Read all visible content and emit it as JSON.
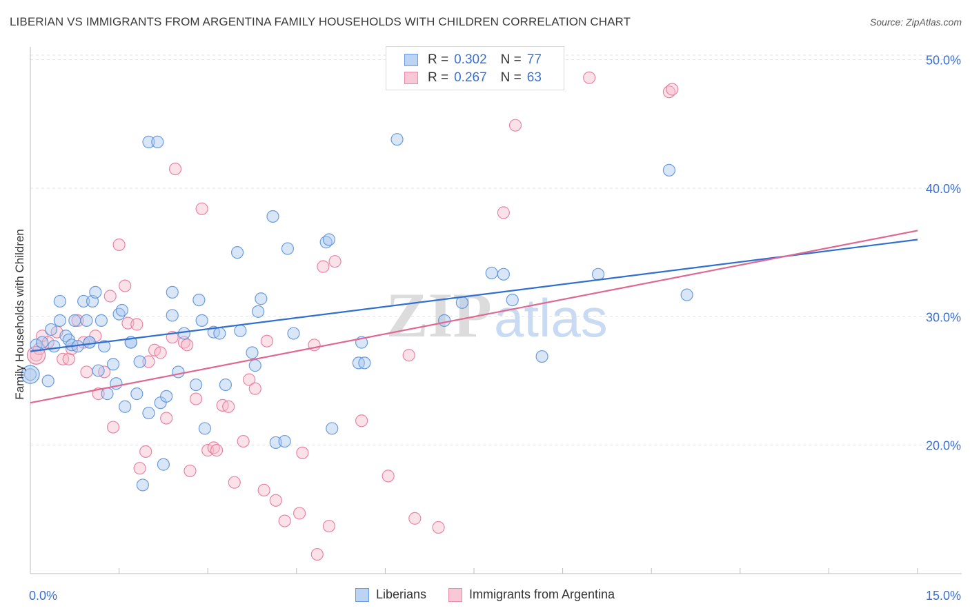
{
  "title": "LIBERIAN VS IMMIGRANTS FROM ARGENTINA FAMILY HOUSEHOLDS WITH CHILDREN CORRELATION CHART",
  "source": "Source: ZipAtlas.com",
  "watermark": {
    "zip": "ZIP",
    "atlas": "atlas"
  },
  "colors": {
    "blue_fill": "#a9c7f0",
    "blue_stroke": "#5b92da",
    "blue_line": "#2f6fd0",
    "pink_fill": "#f6bccd",
    "pink_stroke": "#e6799b",
    "pink_line": "#e0678f",
    "axis_label": "#3a6fd0",
    "grid": "#e2e2e2"
  },
  "legend": {
    "r_label": "R =",
    "n_label": "N =",
    "rows": [
      {
        "r": "0.302",
        "n": "77",
        "series": "blue"
      },
      {
        "r": "0.267",
        "n": "63",
        "series": "pink"
      }
    ]
  },
  "bottom_legend": {
    "liberians": "Liberians",
    "argentina": "Immigrants from Argentina"
  },
  "chart_data": {
    "type": "scatter",
    "title": "LIBERIAN VS IMMIGRANTS FROM ARGENTINA FAMILY HOUSEHOLDS WITH CHILDREN CORRELATION CHART",
    "xlabel": "",
    "ylabel": "Family Households with Children",
    "xlim": [
      0,
      15
    ],
    "ylim": [
      10,
      51
    ],
    "x_tick_labels": [
      "0.0%",
      "15.0%"
    ],
    "y_ticks": [
      20,
      30,
      40,
      50
    ],
    "y_tick_labels": [
      "20.0%",
      "30.0%",
      "40.0%",
      "50.0%"
    ],
    "grid": true,
    "legend_position": "top-center",
    "series": [
      {
        "name": "Liberians",
        "color": "blue",
        "trend": [
          [
            0,
            27.3
          ],
          [
            15,
            36.0
          ]
        ],
        "points": [
          [
            0.0,
            25.5
          ],
          [
            0.1,
            27.8
          ],
          [
            0.2,
            28.0
          ],
          [
            0.3,
            25.0
          ],
          [
            0.35,
            29.0
          ],
          [
            0.4,
            27.7
          ],
          [
            0.5,
            29.7
          ],
          [
            0.5,
            31.2
          ],
          [
            0.6,
            28.5
          ],
          [
            0.65,
            28.2
          ],
          [
            0.7,
            27.8
          ],
          [
            0.75,
            29.7
          ],
          [
            0.8,
            27.7
          ],
          [
            0.9,
            31.2
          ],
          [
            0.95,
            29.7
          ],
          [
            1.0,
            28.0
          ],
          [
            1.05,
            31.2
          ],
          [
            1.1,
            31.9
          ],
          [
            1.15,
            25.8
          ],
          [
            1.2,
            29.7
          ],
          [
            1.25,
            27.7
          ],
          [
            1.3,
            24.0
          ],
          [
            1.4,
            26.3
          ],
          [
            1.45,
            24.8
          ],
          [
            1.5,
            30.2
          ],
          [
            1.55,
            30.5
          ],
          [
            1.6,
            23.0
          ],
          [
            1.7,
            28.0
          ],
          [
            1.8,
            24.0
          ],
          [
            1.85,
            26.5
          ],
          [
            1.9,
            16.9
          ],
          [
            2.0,
            22.5
          ],
          [
            2.0,
            43.6
          ],
          [
            2.15,
            43.6
          ],
          [
            2.2,
            23.3
          ],
          [
            2.25,
            18.5
          ],
          [
            2.3,
            23.8
          ],
          [
            2.4,
            30.1
          ],
          [
            2.4,
            31.9
          ],
          [
            2.5,
            25.7
          ],
          [
            2.6,
            28.7
          ],
          [
            2.8,
            24.7
          ],
          [
            2.85,
            31.3
          ],
          [
            2.9,
            29.7
          ],
          [
            2.95,
            21.3
          ],
          [
            3.1,
            28.8
          ],
          [
            3.2,
            28.7
          ],
          [
            3.3,
            24.7
          ],
          [
            3.5,
            35.0
          ],
          [
            3.55,
            28.9
          ],
          [
            3.75,
            27.2
          ],
          [
            3.8,
            26.2
          ],
          [
            3.85,
            30.4
          ],
          [
            3.9,
            31.4
          ],
          [
            4.1,
            37.8
          ],
          [
            4.15,
            20.2
          ],
          [
            4.3,
            20.3
          ],
          [
            4.35,
            35.3
          ],
          [
            4.45,
            28.7
          ],
          [
            5.0,
            35.8
          ],
          [
            5.05,
            36.0
          ],
          [
            5.1,
            21.3
          ],
          [
            5.55,
            26.4
          ],
          [
            5.6,
            28.0
          ],
          [
            5.65,
            26.4
          ],
          [
            6.2,
            43.8
          ],
          [
            7.0,
            29.7
          ],
          [
            7.3,
            31.1
          ],
          [
            7.8,
            33.4
          ],
          [
            8.0,
            33.3
          ],
          [
            8.15,
            31.3
          ],
          [
            8.65,
            26.9
          ],
          [
            9.6,
            33.3
          ],
          [
            10.8,
            41.4
          ],
          [
            11.1,
            31.7
          ],
          [
            1.7,
            28.0
          ],
          [
            1.0,
            28.0
          ]
        ]
      },
      {
        "name": "Immigrants from Argentina",
        "color": "pink",
        "trend": [
          [
            0,
            23.3
          ],
          [
            15,
            36.7
          ]
        ],
        "points": [
          [
            0.1,
            27.0
          ],
          [
            0.15,
            27.5
          ],
          [
            0.2,
            28.5
          ],
          [
            0.3,
            28.0
          ],
          [
            0.45,
            28.8
          ],
          [
            0.55,
            26.7
          ],
          [
            0.65,
            26.7
          ],
          [
            0.7,
            27.5
          ],
          [
            0.8,
            29.7
          ],
          [
            0.9,
            28.0
          ],
          [
            0.95,
            25.7
          ],
          [
            1.1,
            28.5
          ],
          [
            1.15,
            24.0
          ],
          [
            1.25,
            25.7
          ],
          [
            1.35,
            31.6
          ],
          [
            1.4,
            21.4
          ],
          [
            1.5,
            35.6
          ],
          [
            1.6,
            32.4
          ],
          [
            1.65,
            29.5
          ],
          [
            1.8,
            29.4
          ],
          [
            1.85,
            18.2
          ],
          [
            1.95,
            19.5
          ],
          [
            2.0,
            26.5
          ],
          [
            2.1,
            27.4
          ],
          [
            2.2,
            27.2
          ],
          [
            2.3,
            22.1
          ],
          [
            2.4,
            28.4
          ],
          [
            2.45,
            41.5
          ],
          [
            2.6,
            28.0
          ],
          [
            2.65,
            27.8
          ],
          [
            2.7,
            18.0
          ],
          [
            2.8,
            23.6
          ],
          [
            2.9,
            38.4
          ],
          [
            3.0,
            19.6
          ],
          [
            3.1,
            19.8
          ],
          [
            3.15,
            19.6
          ],
          [
            3.25,
            23.1
          ],
          [
            3.35,
            23.0
          ],
          [
            3.45,
            17.1
          ],
          [
            3.6,
            20.3
          ],
          [
            3.7,
            25.1
          ],
          [
            3.8,
            24.4
          ],
          [
            3.95,
            16.5
          ],
          [
            4.0,
            28.1
          ],
          [
            4.15,
            15.7
          ],
          [
            4.3,
            14.1
          ],
          [
            4.55,
            14.7
          ],
          [
            4.6,
            19.4
          ],
          [
            4.8,
            27.8
          ],
          [
            4.85,
            11.5
          ],
          [
            4.95,
            33.9
          ],
          [
            5.05,
            13.7
          ],
          [
            5.15,
            34.3
          ],
          [
            5.6,
            21.9
          ],
          [
            6.05,
            17.6
          ],
          [
            6.4,
            27.0
          ],
          [
            6.5,
            14.3
          ],
          [
            6.9,
            13.6
          ],
          [
            8.0,
            38.1
          ],
          [
            8.2,
            44.9
          ],
          [
            9.45,
            48.6
          ],
          [
            10.8,
            47.5
          ],
          [
            10.85,
            47.7
          ]
        ]
      }
    ]
  }
}
